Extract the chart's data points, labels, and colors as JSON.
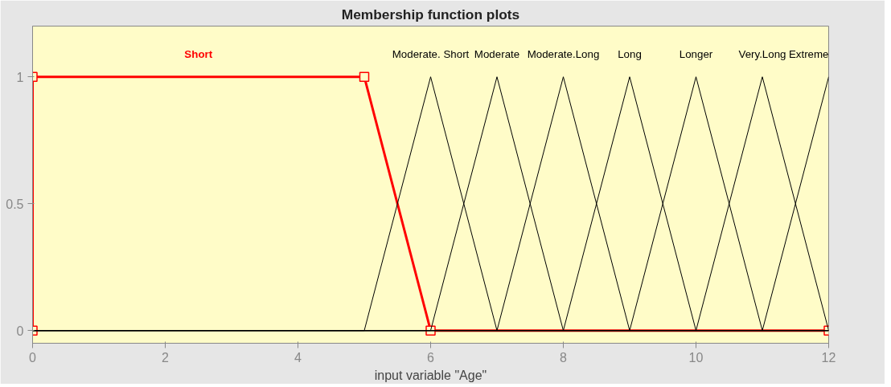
{
  "chart_data": {
    "type": "line",
    "title": "Membership function plots",
    "xlabel": "input variable \"Age\"",
    "xlim": [
      0,
      12
    ],
    "xticks": [
      0,
      2,
      4,
      6,
      8,
      10,
      12
    ],
    "ylim": [
      -0.05,
      1.2
    ],
    "yticks": [
      0,
      0.5,
      1
    ],
    "grid": false,
    "series": [
      {
        "name": "Short",
        "color": "#ff0000",
        "x": [
          0,
          0,
          5,
          6,
          12
        ],
        "values": [
          0,
          1,
          1,
          0,
          0
        ],
        "marker": "square"
      },
      {
        "name": "Moderate. Short",
        "color": "#000000",
        "x": [
          0,
          5,
          6,
          7,
          12
        ],
        "values": [
          0,
          0,
          1,
          0,
          0
        ]
      },
      {
        "name": "Moderate",
        "color": "#000000",
        "x": [
          0,
          6,
          7,
          8,
          12
        ],
        "values": [
          0,
          0,
          1,
          0,
          0
        ]
      },
      {
        "name": "Moderate.Long",
        "color": "#000000",
        "x": [
          0,
          7,
          8,
          9,
          12
        ],
        "values": [
          0,
          0,
          1,
          0,
          0
        ]
      },
      {
        "name": "Long",
        "color": "#000000",
        "x": [
          0,
          8,
          9,
          10,
          12
        ],
        "values": [
          0,
          0,
          1,
          0,
          0
        ]
      },
      {
        "name": "Longer",
        "color": "#000000",
        "x": [
          0,
          9,
          10,
          11,
          12
        ],
        "values": [
          0,
          0,
          1,
          0,
          0
        ]
      },
      {
        "name": "Very.Long",
        "color": "#000000",
        "x": [
          0,
          10,
          11,
          12
        ],
        "values": [
          0,
          0,
          1,
          0
        ]
      },
      {
        "name": "Extreme",
        "color": "#000000",
        "x": [
          0,
          11,
          12
        ],
        "values": [
          0,
          0,
          1
        ]
      }
    ]
  }
}
